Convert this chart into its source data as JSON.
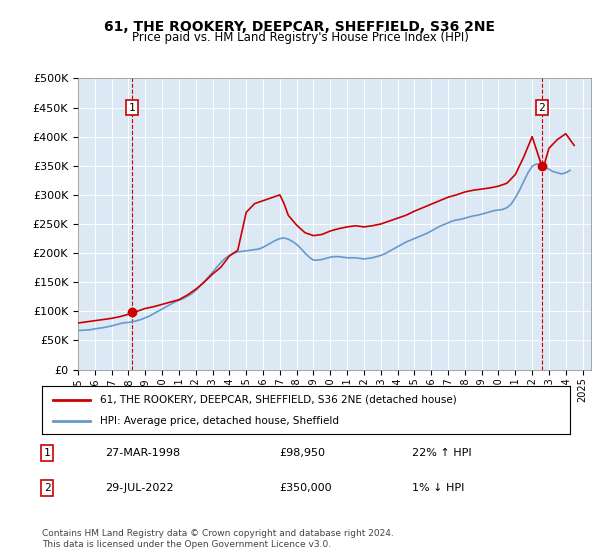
{
  "title": "61, THE ROOKERY, DEEPCAR, SHEFFIELD, S36 2NE",
  "subtitle": "Price paid vs. HM Land Registry's House Price Index (HPI)",
  "background_color": "#dce9f5",
  "plot_bg_color": "#dce9f5",
  "red_line_color": "#cc0000",
  "blue_line_color": "#6699cc",
  "ylim": [
    0,
    500000
  ],
  "yticks": [
    0,
    50000,
    100000,
    150000,
    200000,
    250000,
    300000,
    350000,
    400000,
    450000,
    500000
  ],
  "xlabel_years": [
    "1995",
    "1996",
    "1997",
    "1998",
    "1999",
    "2000",
    "2001",
    "2002",
    "2003",
    "2004",
    "2005",
    "2006",
    "2007",
    "2008",
    "2009",
    "2010",
    "2011",
    "2012",
    "2013",
    "2014",
    "2015",
    "2016",
    "2017",
    "2018",
    "2019",
    "2020",
    "2021",
    "2022",
    "2023",
    "2024",
    "2025"
  ],
  "transaction1": {
    "date": "27-MAR-1998",
    "price": 98950,
    "label": "1",
    "pct": "22% ↑ HPI"
  },
  "transaction2": {
    "date": "29-JUL-2022",
    "price": 350000,
    "label": "2",
    "pct": "1% ↓ HPI"
  },
  "legend_line1": "61, THE ROOKERY, DEEPCAR, SHEFFIELD, S36 2NE (detached house)",
  "legend_line2": "HPI: Average price, detached house, Sheffield",
  "footer": "Contains HM Land Registry data © Crown copyright and database right 2024.\nThis data is licensed under the Open Government Licence v3.0.",
  "hpi_years": [
    1995.0,
    1995.25,
    1995.5,
    1995.75,
    1996.0,
    1996.25,
    1996.5,
    1996.75,
    1997.0,
    1997.25,
    1997.5,
    1997.75,
    1998.0,
    1998.25,
    1998.5,
    1998.75,
    1999.0,
    1999.25,
    1999.5,
    1999.75,
    2000.0,
    2000.25,
    2000.5,
    2000.75,
    2001.0,
    2001.25,
    2001.5,
    2001.75,
    2002.0,
    2002.25,
    2002.5,
    2002.75,
    2003.0,
    2003.25,
    2003.5,
    2003.75,
    2004.0,
    2004.25,
    2004.5,
    2004.75,
    2005.0,
    2005.25,
    2005.5,
    2005.75,
    2006.0,
    2006.25,
    2006.5,
    2006.75,
    2007.0,
    2007.25,
    2007.5,
    2007.75,
    2008.0,
    2008.25,
    2008.5,
    2008.75,
    2009.0,
    2009.25,
    2009.5,
    2009.75,
    2010.0,
    2010.25,
    2010.5,
    2010.75,
    2011.0,
    2011.25,
    2011.5,
    2011.75,
    2012.0,
    2012.25,
    2012.5,
    2012.75,
    2013.0,
    2013.25,
    2013.5,
    2013.75,
    2014.0,
    2014.25,
    2014.5,
    2014.75,
    2015.0,
    2015.25,
    2015.5,
    2015.75,
    2016.0,
    2016.25,
    2016.5,
    2016.75,
    2017.0,
    2017.25,
    2017.5,
    2017.75,
    2018.0,
    2018.25,
    2018.5,
    2018.75,
    2019.0,
    2019.25,
    2019.5,
    2019.75,
    2020.0,
    2020.25,
    2020.5,
    2020.75,
    2021.0,
    2021.25,
    2021.5,
    2021.75,
    2022.0,
    2022.25,
    2022.5,
    2022.75,
    2023.0,
    2023.25,
    2023.5,
    2023.75,
    2024.0,
    2024.25
  ],
  "hpi_values": [
    67000,
    67500,
    68000,
    68500,
    70000,
    71000,
    72000,
    73500,
    75000,
    77000,
    79000,
    80500,
    81000,
    82000,
    84000,
    86000,
    89000,
    92000,
    96000,
    100000,
    104000,
    108000,
    112000,
    116000,
    119000,
    122000,
    126000,
    130000,
    136000,
    143000,
    151000,
    159000,
    167000,
    176000,
    184000,
    191000,
    196000,
    200000,
    202000,
    203000,
    204000,
    205000,
    206000,
    207000,
    210000,
    214000,
    218000,
    222000,
    225000,
    226000,
    224000,
    220000,
    215000,
    208000,
    200000,
    193000,
    188000,
    188000,
    189000,
    191000,
    193000,
    194000,
    194000,
    193000,
    192000,
    192000,
    192000,
    191000,
    190000,
    191000,
    192000,
    194000,
    196000,
    199000,
    203000,
    207000,
    211000,
    215000,
    219000,
    222000,
    225000,
    228000,
    231000,
    234000,
    238000,
    242000,
    246000,
    249000,
    252000,
    255000,
    257000,
    258000,
    260000,
    262000,
    264000,
    265000,
    267000,
    269000,
    271000,
    273000,
    274000,
    275000,
    278000,
    284000,
    295000,
    308000,
    323000,
    338000,
    349000,
    353000,
    352000,
    348000,
    344000,
    340000,
    338000,
    336000,
    338000,
    342000
  ],
  "price_years": [
    1995.0,
    1995.5,
    1996.0,
    1996.5,
    1997.0,
    1997.5,
    1998.0,
    1998.24,
    1998.5,
    1999.0,
    1999.5,
    2000.0,
    2000.5,
    2001.0,
    2001.5,
    2002.0,
    2002.5,
    2003.0,
    2003.5,
    2004.0,
    2004.5,
    2005.0,
    2005.5,
    2006.0,
    2006.5,
    2007.0,
    2007.25,
    2007.5,
    2008.0,
    2008.5,
    2009.0,
    2009.5,
    2010.0,
    2010.5,
    2011.0,
    2011.5,
    2012.0,
    2012.5,
    2013.0,
    2013.5,
    2014.0,
    2014.5,
    2015.0,
    2015.5,
    2016.0,
    2016.5,
    2017.0,
    2017.5,
    2018.0,
    2018.5,
    2019.0,
    2019.5,
    2020.0,
    2020.5,
    2021.0,
    2021.5,
    2022.0,
    2022.57,
    2022.75,
    2023.0,
    2023.5,
    2024.0,
    2024.5
  ],
  "price_values": [
    80000,
    82000,
    84000,
    86000,
    88000,
    91000,
    95000,
    98950,
    100000,
    105000,
    108000,
    112000,
    116000,
    120000,
    128000,
    138000,
    150000,
    164000,
    176000,
    195000,
    205000,
    270000,
    285000,
    290000,
    295000,
    300000,
    285000,
    265000,
    248000,
    235000,
    230000,
    232000,
    238000,
    242000,
    245000,
    247000,
    245000,
    247000,
    250000,
    255000,
    260000,
    265000,
    272000,
    278000,
    284000,
    290000,
    296000,
    300000,
    305000,
    308000,
    310000,
    312000,
    315000,
    320000,
    335000,
    365000,
    400000,
    350000,
    355000,
    380000,
    395000,
    405000,
    385000
  ]
}
